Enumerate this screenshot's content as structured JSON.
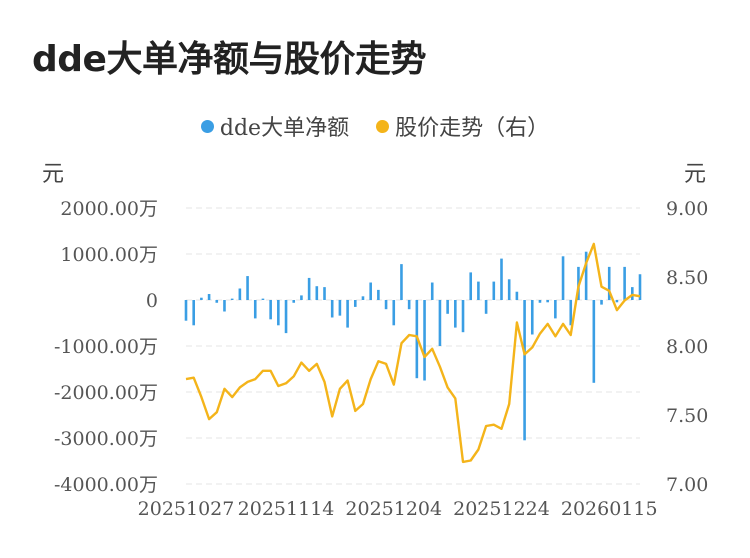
{
  "title": "dde大单净额与股价走势",
  "legend": {
    "bar_label": "dde大单净额",
    "line_label": "股价走势（右）"
  },
  "units": {
    "left": "元",
    "right": "元"
  },
  "colors": {
    "bar": "#3a9ee4",
    "line": "#f4b41a",
    "grid": "#e4e4e4"
  },
  "chart_data": {
    "type": "bar+line",
    "title": "dde大单净额与股价走势",
    "x_tick_labels": [
      "20251027",
      "20251114",
      "20251204",
      "20251224",
      "20260115"
    ],
    "x_tick_indices": [
      0,
      13,
      27,
      41,
      55
    ],
    "y_left": {
      "label": "元",
      "ylim": [
        -4000,
        2000
      ],
      "ticks": [
        2000,
        1000,
        0,
        -1000,
        -2000,
        -3000,
        -4000
      ],
      "tick_labels": [
        "2000.00万",
        "1000.00万",
        "0",
        "-1000.00万",
        "-2000.00万",
        "-3000.00万",
        "-4000.00万"
      ]
    },
    "y_right": {
      "label": "元",
      "ylim": [
        7.0,
        9.0
      ],
      "ticks": [
        9.0,
        8.5,
        8.0,
        7.5,
        7.0
      ],
      "tick_labels": [
        "9.00",
        "8.50",
        "8.00",
        "7.50",
        "7.00"
      ]
    },
    "grid": true,
    "series": [
      {
        "name": "dde大单净额",
        "type": "bar",
        "unit": "万元",
        "values": [
          -450,
          -550,
          50,
          130,
          -60,
          -250,
          30,
          250,
          520,
          -400,
          30,
          -420,
          -550,
          -720,
          -60,
          100,
          480,
          300,
          280,
          -380,
          -340,
          -600,
          -150,
          80,
          380,
          220,
          -200,
          -550,
          780,
          -200,
          -1700,
          -1750,
          380,
          -1000,
          -300,
          -600,
          -700,
          600,
          400,
          -300,
          400,
          900,
          450,
          180,
          -3050,
          -750,
          -60,
          -50,
          -400,
          950,
          -550,
          720,
          1050,
          -1800,
          -100,
          720,
          -50,
          720,
          280,
          560
        ]
      },
      {
        "name": "股价走势（右）",
        "type": "line",
        "unit": "元",
        "values": [
          7.76,
          7.77,
          7.63,
          7.47,
          7.52,
          7.69,
          7.63,
          7.7,
          7.74,
          7.76,
          7.82,
          7.82,
          7.71,
          7.73,
          7.78,
          7.88,
          7.82,
          7.87,
          7.74,
          7.49,
          7.69,
          7.75,
          7.53,
          7.58,
          7.76,
          7.89,
          7.87,
          7.72,
          8.02,
          8.08,
          8.07,
          7.92,
          7.98,
          7.85,
          7.7,
          7.62,
          7.16,
          7.17,
          7.25,
          7.42,
          7.43,
          7.4,
          7.58,
          8.17,
          7.94,
          7.99,
          8.09,
          8.16,
          8.07,
          8.16,
          8.08,
          8.43,
          8.6,
          8.74,
          8.43,
          8.4,
          8.26,
          8.33,
          8.37,
          8.36
        ]
      }
    ]
  }
}
